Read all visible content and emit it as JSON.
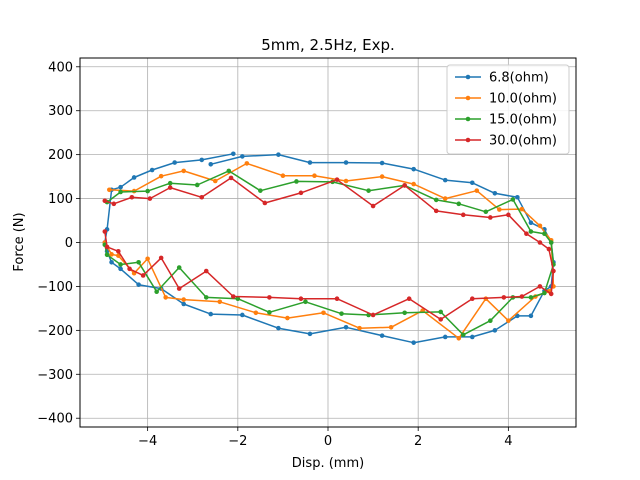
{
  "chart_data": {
    "type": "line",
    "title": "5mm, 2.5Hz, Exp.",
    "xlabel": "Disp. (mm)",
    "ylabel": "Force (N)",
    "xlim": [
      -5.5,
      5.5
    ],
    "ylim": [
      -420,
      420
    ],
    "xticks": [
      -4,
      -2,
      0,
      2,
      4
    ],
    "xtick_labels": [
      "−4",
      "−2",
      "0",
      "2",
      "4"
    ],
    "yticks": [
      -400,
      -300,
      -200,
      -100,
      0,
      100,
      200,
      300,
      400
    ],
    "ytick_labels": [
      "−400",
      "−300",
      "−200",
      "−100",
      "0",
      "100",
      "200",
      "300",
      "400"
    ],
    "grid": true,
    "legend_position": "top-right",
    "series": [
      {
        "name": "6.8(ohm)",
        "color": "#1f77b4",
        "x": [
          -2.6,
          -1.9,
          -1.1,
          -0.4,
          0.4,
          1.2,
          1.9,
          2.6,
          3.2,
          3.7,
          4.2,
          4.5,
          4.8,
          4.95,
          5.0,
          4.95,
          4.8,
          4.5,
          4.2,
          3.7,
          3.2,
          2.6,
          1.9,
          1.2,
          0.4,
          -0.4,
          -1.1,
          -1.9,
          -2.6,
          -3.2,
          -3.7,
          -4.2,
          -4.6,
          -4.8,
          -4.9,
          -4.95,
          -4.9,
          -4.8,
          -4.6,
          -4.3,
          -3.9,
          -3.4,
          -2.8,
          -2.1
        ],
        "y": [
          178,
          196,
          200,
          182,
          182,
          181,
          167,
          142,
          136,
          112,
          103,
          45,
          30,
          0,
          -45,
          -100,
          -110,
          -167,
          -167,
          -200,
          -215,
          -215,
          -228,
          -212,
          -193,
          -208,
          -195,
          -165,
          -163,
          -140,
          -105,
          -96,
          -60,
          -45,
          -20,
          0,
          30,
          120,
          126,
          148,
          165,
          182,
          188,
          202
        ]
      },
      {
        "name": "10.0(ohm)",
        "color": "#ff7f0e",
        "x": [
          -4.85,
          -4.3,
          -3.7,
          -3.2,
          -2.5,
          -1.8,
          -1.0,
          -0.3,
          0.4,
          1.2,
          1.9,
          2.6,
          3.3,
          3.8,
          4.3,
          4.7,
          4.95,
          5.0,
          4.9,
          4.6,
          4.0,
          3.5,
          2.9,
          2.1,
          1.4,
          0.7,
          -0.1,
          -0.9,
          -1.6,
          -2.4,
          -3.2,
          -3.6,
          -4.0,
          -4.3,
          -4.65,
          -4.8,
          -4.95
        ],
        "y": [
          120,
          117,
          151,
          163,
          140,
          180,
          152,
          152,
          140,
          150,
          133,
          100,
          118,
          75,
          76,
          38,
          5,
          -100,
          -111,
          -123,
          -178,
          -128,
          -218,
          -155,
          -193,
          -195,
          -160,
          -172,
          -160,
          -135,
          -130,
          -125,
          -37,
          -70,
          -30,
          -27,
          0
        ]
      },
      {
        "name": "15.0(ohm)",
        "color": "#2ca02c",
        "x": [
          -4.9,
          -4.6,
          -4.0,
          -3.5,
          -2.9,
          -2.2,
          -1.5,
          -0.7,
          0.1,
          0.9,
          1.7,
          2.4,
          2.9,
          3.5,
          4.1,
          4.5,
          4.8,
          4.95,
          5.0,
          4.8,
          4.5,
          4.1,
          3.6,
          3.0,
          2.5,
          1.7,
          0.9,
          0.3,
          -0.5,
          -1.3,
          -2.0,
          -2.7,
          -3.3,
          -3.8,
          -4.2,
          -4.6,
          -4.9,
          -4.95
        ],
        "y": [
          92,
          115,
          117,
          135,
          131,
          163,
          118,
          139,
          138,
          118,
          130,
          97,
          88,
          70,
          98,
          25,
          20,
          0,
          -50,
          -115,
          -125,
          -125,
          -178,
          -210,
          -158,
          -160,
          -165,
          -162,
          -135,
          -159,
          -128,
          -125,
          -57,
          -112,
          -45,
          -50,
          -28,
          -5
        ]
      },
      {
        "name": "30.0(ohm)",
        "color": "#d62728",
        "x": [
          -4.95,
          -4.75,
          -4.35,
          -3.95,
          -3.5,
          -2.8,
          -2.15,
          -1.4,
          -0.6,
          0.2,
          1.0,
          1.7,
          2.4,
          3.0,
          3.6,
          4.0,
          4.4,
          4.7,
          4.9,
          5.0,
          4.95,
          4.7,
          4.3,
          3.9,
          3.2,
          2.5,
          1.8,
          1.0,
          0.2,
          -0.6,
          -1.3,
          -2.1,
          -2.7,
          -3.3,
          -3.7,
          -4.1,
          -4.4,
          -4.65,
          -4.9,
          -4.95
        ],
        "y": [
          95,
          88,
          103,
          100,
          125,
          103,
          147,
          90,
          113,
          143,
          83,
          130,
          72,
          63,
          57,
          63,
          20,
          0,
          -15,
          -65,
          -117,
          -100,
          -123,
          -125,
          -128,
          -175,
          -128,
          -165,
          -128,
          -128,
          -125,
          -123,
          -65,
          -105,
          -35,
          -75,
          -60,
          -20,
          -10,
          25
        ]
      }
    ]
  }
}
